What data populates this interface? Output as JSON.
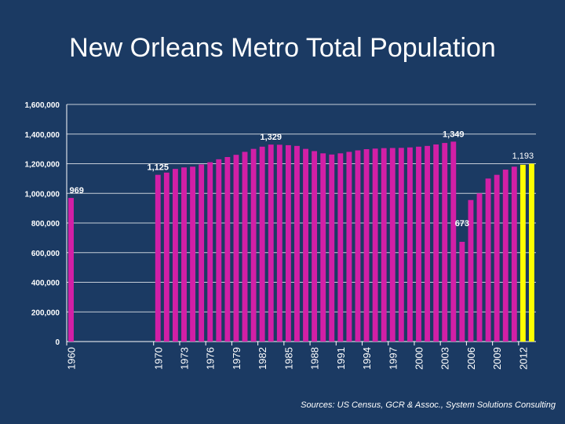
{
  "title": "New Orleans Metro Total Population",
  "source": "Sources: US Census, GCR & Assoc., System Solutions Consulting",
  "colors": {
    "background": "#1b3a63",
    "bar": "#d21fa6",
    "highlight": "#ffff00",
    "grid": "#ffffff"
  },
  "chart_data": {
    "type": "bar",
    "title": "New Orleans Metro Total Population",
    "xlabel": "",
    "ylabel": "",
    "ylim": [
      0,
      1600000
    ],
    "yticks": [
      0,
      200000,
      400000,
      600000,
      800000,
      1000000,
      1200000,
      1400000,
      1600000
    ],
    "ytick_labels": [
      "0",
      "200,000",
      "400,000",
      "600,000",
      "800,000",
      "1,000,000",
      "1,200,000",
      "1,400,000",
      "1,600,000"
    ],
    "grid": true,
    "categories": [
      "1960",
      "1961",
      "1962",
      "1963",
      "1964",
      "1965",
      "1966",
      "1967",
      "1968",
      "1969",
      "1970",
      "1971",
      "1972",
      "1973",
      "1974",
      "1975",
      "1976",
      "1977",
      "1978",
      "1979",
      "1980",
      "1981",
      "1982",
      "1983",
      "1984",
      "1985",
      "1986",
      "1987",
      "1988",
      "1989",
      "1990",
      "1991",
      "1992",
      "1993",
      "1994",
      "1995",
      "1996",
      "1997",
      "1998",
      "1999",
      "2000",
      "2001",
      "2002",
      "2003",
      "2004",
      "2005",
      "2006",
      "2007",
      "2008",
      "2009",
      "2010",
      "2011",
      "2012",
      "2013"
    ],
    "values": [
      969000,
      null,
      null,
      null,
      null,
      null,
      null,
      null,
      null,
      null,
      1125000,
      1140000,
      1165000,
      1175000,
      1180000,
      1195000,
      1210000,
      1230000,
      1245000,
      1260000,
      1280000,
      1300000,
      1315000,
      1329000,
      1328000,
      1325000,
      1320000,
      1300000,
      1285000,
      1270000,
      1262000,
      1270000,
      1280000,
      1290000,
      1298000,
      1302000,
      1305000,
      1306000,
      1307000,
      1310000,
      1315000,
      1320000,
      1330000,
      1340000,
      1349000,
      673000,
      955000,
      1000000,
      1100000,
      1125000,
      1160000,
      1180000,
      1193000,
      1200000
    ],
    "highlight_categories": [
      "2012"
    ],
    "xtick_labels": [
      "1960",
      "1970",
      "1973",
      "1976",
      "1979",
      "1982",
      "1985",
      "1988",
      "1991",
      "1994",
      "1997",
      "2000",
      "2003",
      "2006",
      "2009",
      "2012"
    ],
    "annotations": [
      {
        "category": "1960",
        "text": "969"
      },
      {
        "category": "1970",
        "text": "1,125"
      },
      {
        "category": "1983",
        "text": "1,329"
      },
      {
        "category": "2004",
        "text": "1,349"
      },
      {
        "category": "2005",
        "text": "673"
      },
      {
        "category": "2012",
        "text": "1,193"
      }
    ]
  }
}
